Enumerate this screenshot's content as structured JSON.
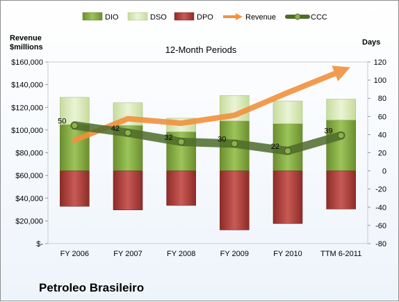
{
  "chart_data": {
    "type": "bar",
    "title": "12-Month Periods",
    "footer": "Petroleo Brasileiro",
    "left_axis": {
      "label_line1": "Revenue",
      "label_line2": "$millions",
      "min": 0,
      "max": 160000,
      "step": 20000,
      "tick_labels": [
        "$-",
        "$20,000",
        "$40,000",
        "$60,000",
        "$80,000",
        "$100,000",
        "$120,000",
        "$140,000",
        "$160,000"
      ]
    },
    "right_axis": {
      "label": "Days",
      "min": -80,
      "max": 120,
      "step": 20,
      "tick_labels": [
        "-80",
        "-60",
        "-40",
        "-20",
        "0",
        "20",
        "40",
        "60",
        "80",
        "100",
        "120"
      ]
    },
    "categories": [
      "FY 2006",
      "FY 2007",
      "FY 2008",
      "FY 2009",
      "FY 2010",
      "TTM 6-2011"
    ],
    "legend": [
      "DIO",
      "DSO",
      "DPO",
      "Revenue",
      "CCC"
    ],
    "series": [
      {
        "name": "DIO",
        "axis": "right",
        "values": [
          51,
          50,
          43,
          55,
          52,
          56
        ]
      },
      {
        "name": "DSO",
        "axis": "right",
        "values": [
          30,
          25,
          15,
          28,
          25,
          23
        ]
      },
      {
        "name": "DPO",
        "axis": "right",
        "values": [
          -39,
          -43,
          -38,
          -65,
          -58,
          -42
        ]
      },
      {
        "name": "Revenue",
        "axis": "left",
        "values": [
          91000,
          110000,
          106000,
          113000,
          133000,
          152000
        ]
      },
      {
        "name": "CCC",
        "axis": "right",
        "values": [
          50,
          42,
          32,
          30,
          22,
          39
        ]
      }
    ],
    "ccc_labels": [
      "50",
      "42",
      "32",
      "30",
      "22",
      "39"
    ],
    "colors": {
      "DIO": "#7fa63d",
      "DSO": "#d6e7b3",
      "DPO": "#b5423e",
      "Revenue": "#f2913d",
      "CCC": "#4e6b2a"
    },
    "legend_placement": "top",
    "grid": false
  }
}
